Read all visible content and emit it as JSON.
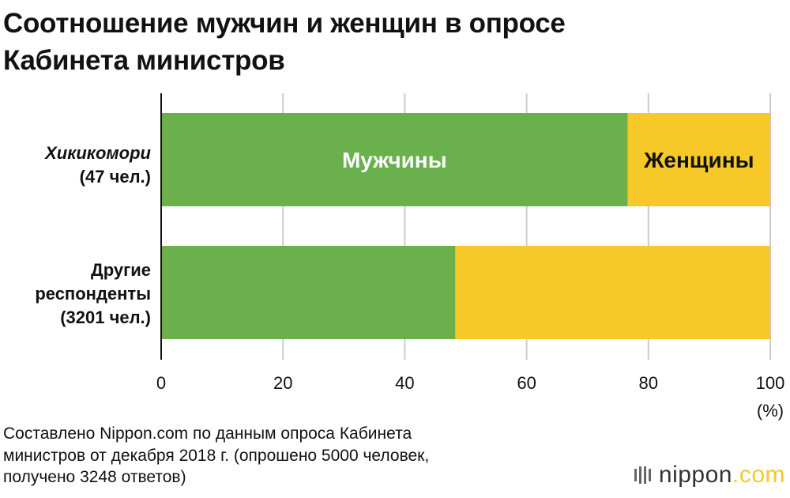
{
  "title_lines": [
    "Соотношение мужчин и женщин в опросе",
    "Кабинета министров"
  ],
  "footnote_lines": [
    "Составлено Nippon.com по данным опроса Кабинета",
    "министров от декабря 2018 г. (опрошено 5000 человек,",
    "получено 3248 ответов)"
  ],
  "logo": {
    "name": "nippon",
    "suffix": ".com"
  },
  "colors": {
    "men": "#6ab04c",
    "women": "#f6c928",
    "grid": "#cccccc",
    "axis": "#111111"
  },
  "chart_data": {
    "type": "bar",
    "orientation": "horizontal",
    "stacked": true,
    "title": "Соотношение мужчин и женщин в опросе Кабинета министров",
    "categories": [
      {
        "lines": [
          "Хикикомори",
          "(47 чел.)"
        ],
        "italic_first": true
      },
      {
        "lines": [
          "Другие",
          "респонденты",
          "(3201 чел.)"
        ],
        "italic_first": false
      }
    ],
    "series": [
      {
        "name": "Мужчины",
        "values": [
          76.6,
          48.3
        ],
        "label_text_color": "#ffffff"
      },
      {
        "name": "Женщины",
        "values": [
          23.4,
          51.7
        ],
        "label_text_color": "#111111"
      }
    ],
    "series_labels_on_category": 0,
    "xlim": [
      0,
      100
    ],
    "xticks": [
      0,
      20,
      40,
      60,
      80,
      100
    ],
    "xunit": "(%)",
    "grid": true
  }
}
